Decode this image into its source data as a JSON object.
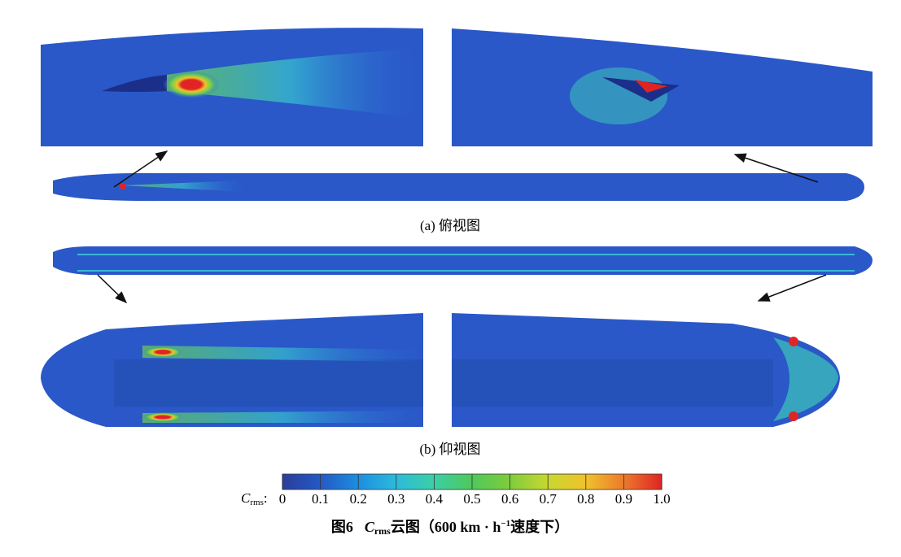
{
  "panels": [
    {
      "label": "(a) 俯视图"
    },
    {
      "label": "(b) 仰视图"
    }
  ],
  "colorbar": {
    "symbol": "C",
    "subscript": "rms",
    "suffix": ":",
    "ticks": [
      "0",
      "0.1",
      "0.2",
      "0.3",
      "0.4",
      "0.5",
      "0.6",
      "0.7",
      "0.8",
      "0.9",
      "1.0"
    ]
  },
  "caption": {
    "number": "图6",
    "symbol": "C",
    "subscript": "rms",
    "text": "云图（600 km · h",
    "superscript": "−1",
    "tail": "速度下）"
  }
}
